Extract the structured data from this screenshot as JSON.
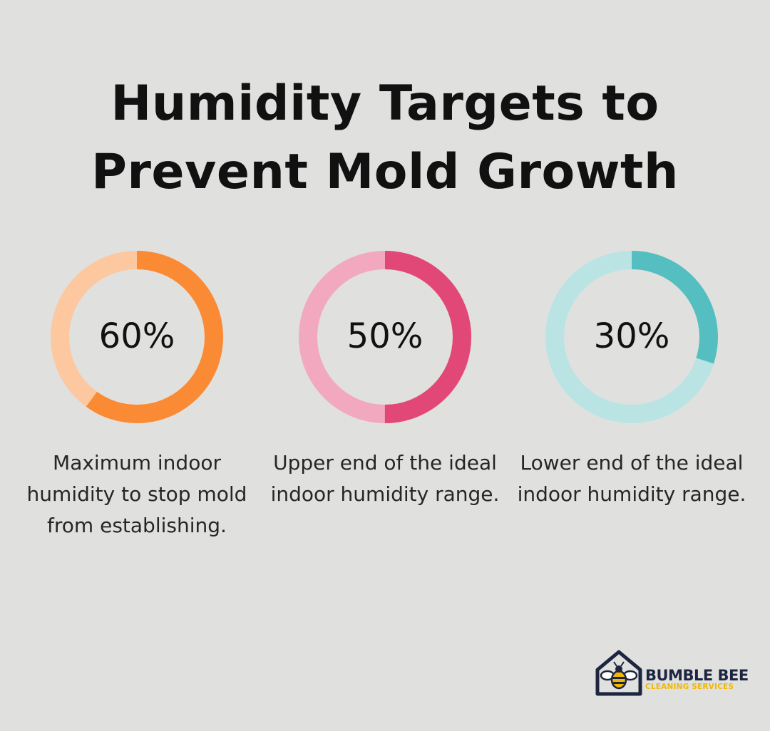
{
  "title": {
    "line1": "Humidity Targets to",
    "line2": "Prevent Mold Growth"
  },
  "chart_data": {
    "type": "donut",
    "items": [
      {
        "value": 60,
        "label": "60%",
        "description": "Maximum indoor humidity to stop mold from establishing.",
        "color_fill": "#fb8a35",
        "color_track": "#fdc89f"
      },
      {
        "value": 50,
        "label": "50%",
        "description": "Upper end of the ideal indoor humidity range.",
        "color_fill": "#e24877",
        "color_track": "#f2a9bf"
      },
      {
        "value": 30,
        "label": "30%",
        "description": "Lower end of the ideal indoor humidity range.",
        "color_fill": "#55bec1",
        "color_track": "#b9e4e3"
      }
    ]
  },
  "logo": {
    "brand": "BUMBLE BEE",
    "subtitle": "CLEANING SERVICES"
  }
}
